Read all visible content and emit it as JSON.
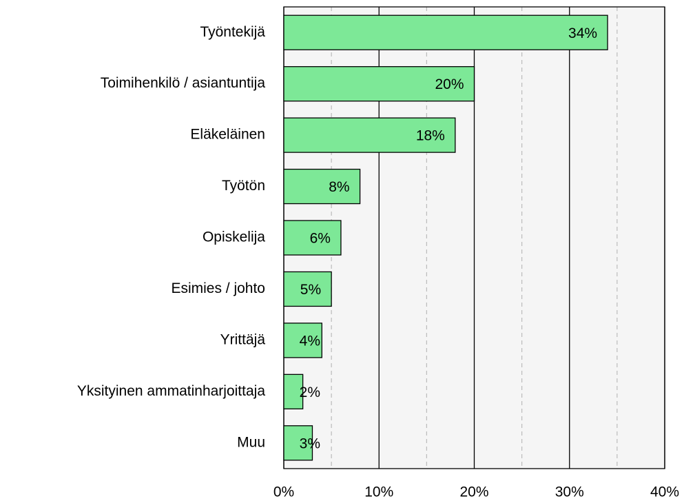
{
  "chart_data": {
    "type": "bar",
    "orientation": "horizontal",
    "categories": [
      "Työntekijä",
      "Toimihenkilö / asiantuntija",
      "Eläkeläinen",
      "Työtön",
      "Opiskelija",
      "Esimies / johto",
      "Yrittäjä",
      "Yksityinen ammatinharjoittaja",
      "Muu"
    ],
    "values": [
      34,
      20,
      18,
      8,
      6,
      5,
      4,
      2,
      3
    ],
    "value_labels": [
      "34%",
      "20%",
      "18%",
      "8%",
      "6%",
      "5%",
      "4%",
      "2%",
      "3%"
    ],
    "color": "#7de897",
    "xlim": [
      0,
      40
    ],
    "xticks": [
      {
        "value": 0,
        "label": "0%"
      },
      {
        "value": 10,
        "label": "10%"
      },
      {
        "value": 20,
        "label": "20%"
      },
      {
        "value": 30,
        "label": "30%"
      },
      {
        "value": 40,
        "label": "40%"
      }
    ],
    "minor_xticks": [
      5,
      15,
      25,
      35
    ],
    "grid": true
  }
}
